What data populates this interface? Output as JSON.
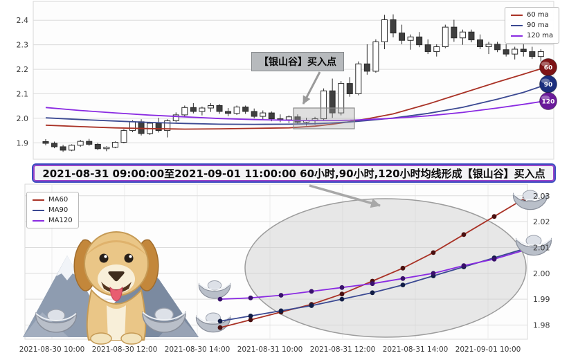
{
  "banner": {
    "text": "2021-08-31 09:00:00至2021-09-01 11:00:00 60小时,90小时,120小时均线形成【银山谷】买入点",
    "border_outer": "#3b4cc0",
    "border_inner": "#9b45c8"
  },
  "chart_data": [
    {
      "type": "candlestick",
      "ylim": [
        1.85,
        2.46
      ],
      "yticks": [
        "2.4",
        "2.3",
        "2.2",
        "2.1",
        "2.0",
        "1.9"
      ],
      "grid": "horizontal",
      "legend_position": "top-right",
      "annotation": {
        "label": "【银山谷】买入点"
      },
      "right_badges": [
        {
          "label": "60",
          "color": "#7e1416"
        },
        {
          "label": "90",
          "color": "#1c2f7e"
        },
        {
          "label": "120",
          "color": "#6a1b9a"
        }
      ],
      "series": [
        {
          "name": "60 ma",
          "color": "#a93226",
          "points": [
            [
              0,
              1.972
            ],
            [
              4,
              1.966
            ],
            [
              8,
              1.961
            ],
            [
              12,
              1.958
            ],
            [
              16,
              1.956
            ],
            [
              20,
              1.957
            ],
            [
              24,
              1.959
            ],
            [
              28,
              1.961
            ],
            [
              31,
              1.968
            ],
            [
              33,
              1.976
            ],
            [
              35,
              1.986
            ],
            [
              37,
              1.998
            ],
            [
              40,
              2.018
            ],
            [
              44,
              2.058
            ],
            [
              48,
              2.103
            ],
            [
              52,
              2.148
            ],
            [
              55,
              2.18
            ],
            [
              57,
              2.202
            ]
          ]
        },
        {
          "name": "90 ma",
          "color": "#3b4992",
          "points": [
            [
              0,
              2.002
            ],
            [
              4,
              1.995
            ],
            [
              8,
              1.989
            ],
            [
              12,
              1.983
            ],
            [
              16,
              1.979
            ],
            [
              20,
              1.976
            ],
            [
              24,
              1.9755
            ],
            [
              28,
              1.976
            ],
            [
              31,
              1.978
            ],
            [
              33,
              1.981
            ],
            [
              35,
              1.985
            ],
            [
              37,
              1.991
            ],
            [
              40,
              2.001
            ],
            [
              44,
              2.02
            ],
            [
              48,
              2.045
            ],
            [
              52,
              2.078
            ],
            [
              55,
              2.106
            ],
            [
              57,
              2.13
            ]
          ]
        },
        {
          "name": "120 ma",
          "color": "#8a2be2",
          "points": [
            [
              0,
              2.044
            ],
            [
              4,
              2.032
            ],
            [
              8,
              2.022
            ],
            [
              12,
              2.013
            ],
            [
              16,
              2.006
            ],
            [
              20,
              1.999
            ],
            [
              24,
              1.995
            ],
            [
              28,
              1.992
            ],
            [
              31,
              1.991
            ],
            [
              33,
              1.991
            ],
            [
              35,
              1.992
            ],
            [
              37,
              1.995
            ],
            [
              40,
              2.0
            ],
            [
              44,
              2.01
            ],
            [
              48,
              2.024
            ],
            [
              52,
              2.042
            ],
            [
              55,
              2.057
            ],
            [
              57,
              2.068
            ]
          ]
        }
      ],
      "candles_ohlc": [
        [
          1.905,
          1.915,
          1.89,
          1.898
        ],
        [
          1.898,
          1.905,
          1.878,
          1.884
        ],
        [
          1.884,
          1.892,
          1.863,
          1.87
        ],
        [
          1.87,
          1.894,
          1.866,
          1.89
        ],
        [
          1.89,
          1.912,
          1.884,
          1.906
        ],
        [
          1.906,
          1.916,
          1.888,
          1.894
        ],
        [
          1.894,
          1.9,
          1.87,
          1.876
        ],
        [
          1.876,
          1.886,
          1.866,
          1.882
        ],
        [
          1.882,
          1.906,
          1.878,
          1.902
        ],
        [
          1.902,
          1.956,
          1.898,
          1.95
        ],
        [
          1.95,
          1.992,
          1.944,
          1.986
        ],
        [
          1.986,
          1.996,
          1.93,
          1.938
        ],
        [
          1.938,
          1.986,
          1.932,
          1.98
        ],
        [
          1.98,
          2.002,
          1.942,
          1.95
        ],
        [
          1.95,
          1.996,
          1.922,
          1.99
        ],
        [
          1.99,
          2.024,
          1.984,
          2.014
        ],
        [
          2.014,
          2.052,
          2.004,
          2.044
        ],
        [
          2.044,
          2.062,
          2.02,
          2.028
        ],
        [
          2.028,
          2.048,
          2.012,
          2.042
        ],
        [
          2.042,
          2.062,
          2.026,
          2.052
        ],
        [
          2.052,
          2.058,
          2.018,
          2.028
        ],
        [
          2.028,
          2.042,
          2.008,
          2.02
        ],
        [
          2.02,
          2.052,
          2.014,
          2.046
        ],
        [
          2.046,
          2.052,
          2.018,
          2.028
        ],
        [
          2.028,
          2.04,
          2.0,
          2.008
        ],
        [
          2.008,
          2.032,
          1.994,
          2.022
        ],
        [
          2.022,
          2.028,
          1.988,
          1.998
        ],
        [
          1.998,
          2.016,
          1.984,
          1.994
        ],
        [
          1.994,
          2.012,
          1.98,
          2.006
        ],
        [
          2.006,
          2.016,
          1.976,
          1.984
        ],
        [
          1.984,
          2.002,
          1.97,
          1.992
        ],
        [
          1.992,
          2.006,
          1.974,
          1.998
        ],
        [
          1.998,
          2.122,
          1.992,
          2.112
        ],
        [
          2.112,
          2.162,
          2.002,
          2.022
        ],
        [
          2.022,
          2.152,
          2.012,
          2.142
        ],
        [
          2.142,
          2.168,
          2.088,
          2.1
        ],
        [
          2.1,
          2.232,
          2.094,
          2.222
        ],
        [
          2.222,
          2.302,
          2.178,
          2.192
        ],
        [
          2.192,
          2.322,
          2.186,
          2.312
        ],
        [
          2.312,
          2.422,
          2.282,
          2.402
        ],
        [
          2.402,
          2.424,
          2.33,
          2.348
        ],
        [
          2.348,
          2.382,
          2.302,
          2.318
        ],
        [
          2.318,
          2.342,
          2.28,
          2.332
        ],
        [
          2.332,
          2.352,
          2.29,
          2.3
        ],
        [
          2.3,
          2.322,
          2.262,
          2.272
        ],
        [
          2.272,
          2.302,
          2.252,
          2.292
        ],
        [
          2.292,
          2.382,
          2.286,
          2.372
        ],
        [
          2.372,
          2.402,
          2.312,
          2.328
        ],
        [
          2.328,
          2.362,
          2.3,
          2.352
        ],
        [
          2.352,
          2.362,
          2.31,
          2.32
        ],
        [
          2.32,
          2.342,
          2.282,
          2.292
        ],
        [
          2.292,
          2.312,
          2.262,
          2.302
        ],
        [
          2.302,
          2.312,
          2.27,
          2.28
        ],
        [
          2.28,
          2.302,
          2.252,
          2.262
        ],
        [
          2.262,
          2.292,
          2.24,
          2.282
        ],
        [
          2.282,
          2.302,
          2.252,
          2.272
        ],
        [
          2.272,
          2.292,
          2.242,
          2.252
        ],
        [
          2.252,
          2.282,
          2.232,
          2.272
        ]
      ]
    },
    {
      "type": "line",
      "ylim": [
        1.9745,
        2.0345
      ],
      "yticks": [
        "2.03",
        "2.02",
        "2.01",
        "2.00",
        "1.99",
        "1.98"
      ],
      "yaxis_side": "right",
      "grid": "both",
      "legend_position": "top-left",
      "x_labels": [
        "2021-08-30 10:00",
        "2021-08-30 12:00",
        "2021-08-30 14:00",
        "2021-08-31 10:00",
        "2021-08-31 12:00",
        "2021-08-31 14:00",
        "2021-09-01 10:00"
      ],
      "series": [
        {
          "name": "MA60",
          "color": "#a93226",
          "marker_color": "#4a0f0f",
          "values": [
            1.979,
            1.982,
            1.985,
            1.988,
            1.992,
            1.997,
            2.002,
            2.008,
            2.015,
            2.022,
            2.029
          ]
        },
        {
          "name": "MA90",
          "color": "#3b4992",
          "marker_color": "#101c45",
          "values": [
            1.9815,
            1.9835,
            1.9855,
            1.9875,
            1.99,
            1.9925,
            1.9955,
            1.999,
            2.0025,
            2.006,
            2.0095
          ]
        },
        {
          "name": "MA120",
          "color": "#8a2be2",
          "marker_color": "#38106b",
          "values": [
            1.99,
            1.9905,
            1.9915,
            1.993,
            1.9945,
            1.996,
            1.998,
            2.0,
            2.003,
            2.0055,
            2.009
          ]
        }
      ]
    }
  ]
}
